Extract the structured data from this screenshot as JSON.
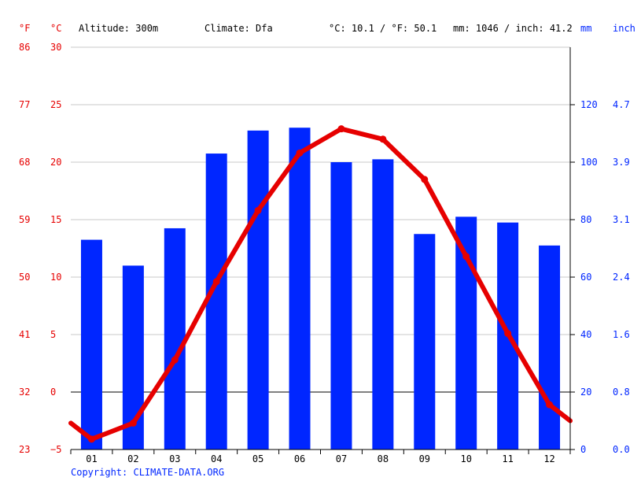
{
  "header": {
    "unit_f": "°F",
    "unit_c": "°C",
    "altitude": "Altitude: 300m",
    "climate": "Climate: Dfa",
    "avg_temp": "°C: 10.1 / °F: 50.1",
    "precip": "mm: 1046 / inch: 41.2",
    "unit_mm": "mm",
    "unit_inch": "inch"
  },
  "footer": {
    "copyright": "Copyright: CLIMATE-DATA.ORG"
  },
  "colors": {
    "temp": "#e60000",
    "precip": "#0026ff",
    "grid": "#c8c8c8",
    "zero": "#000000"
  },
  "chart_data": {
    "type": "bar",
    "categories": [
      "01",
      "02",
      "03",
      "04",
      "05",
      "06",
      "07",
      "08",
      "09",
      "10",
      "11",
      "12"
    ],
    "series": [
      {
        "axis": "right",
        "type": "bar",
        "values": [
          73,
          64,
          77,
          103,
          111,
          112,
          100,
          101,
          75,
          81,
          79,
          71
        ]
      },
      {
        "axis": "left",
        "type": "line",
        "values": [
          -4.1,
          -2.7,
          2.8,
          9.6,
          15.8,
          20.8,
          22.9,
          22.0,
          18.5,
          11.8,
          5.1,
          -1.1
        ]
      }
    ],
    "edge_temps": {
      "start": -2.7,
      "end": -2.5
    },
    "left_ticks_c": [
      "30",
      "25",
      "20",
      "15",
      "10",
      "5",
      "0",
      "−5"
    ],
    "left_ticks_f": [
      "86",
      "77",
      "68",
      "59",
      "50",
      "41",
      "32",
      "23"
    ],
    "right_ticks_mm": [
      "120",
      "100",
      "80",
      "60",
      "40",
      "20",
      "0"
    ],
    "right_ticks_inch": [
      "4.7",
      "3.9",
      "3.1",
      "2.4",
      "1.6",
      "0.8",
      "0.0"
    ],
    "ylim_c": [
      -5,
      30
    ],
    "ylim_mm": [
      0,
      140
    ],
    "grid": true
  }
}
